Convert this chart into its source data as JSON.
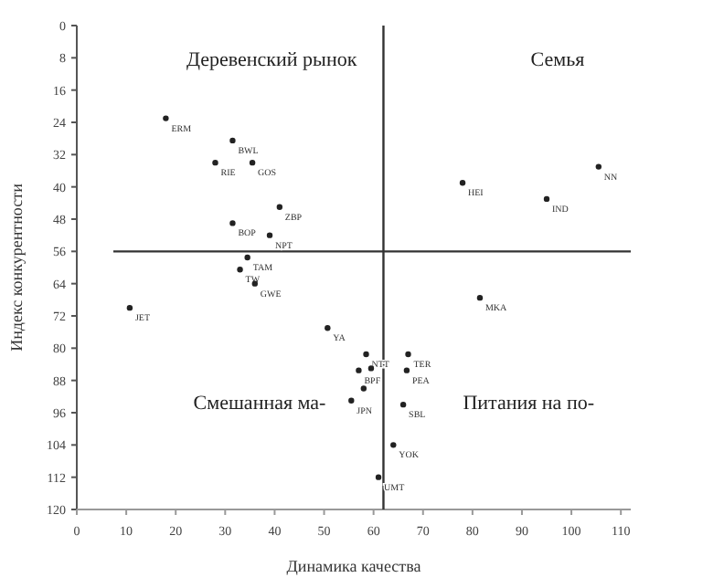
{
  "chart_data": {
    "type": "scatter",
    "xlabel": "Динамика качества",
    "ylabel": "Индекс конкурентности",
    "x": [
      18,
      31.5,
      28,
      35.5,
      41,
      31.5,
      39,
      34.5,
      33,
      36,
      10.7,
      50.7,
      78,
      105.5,
      95,
      81.5,
      58.5,
      67,
      57,
      59.5,
      66.7,
      58,
      55.5,
      66,
      64,
      61
    ],
    "series": [
      {
        "color": "#222222",
        "values": [
          23,
          28.5,
          34,
          34,
          45,
          49,
          52,
          57.5,
          60.5,
          64,
          70,
          75,
          39,
          35,
          43,
          67.5,
          81.5,
          81.5,
          85.5,
          85,
          85.5,
          90,
          93,
          94,
          104,
          112
        ]
      }
    ],
    "xlim": [
      0,
      112
    ],
    "xticks": [
      0,
      10,
      20,
      30,
      40,
      50,
      60,
      70,
      80,
      90,
      100,
      110
    ],
    "ylim": [
      120,
      0
    ],
    "yticks": [
      0,
      8,
      16,
      24,
      32,
      40,
      48,
      56,
      64,
      72,
      80,
      88,
      96,
      104,
      112,
      120
    ],
    "grid": false,
    "marker": "circle",
    "ref_lines": [
      {
        "axis": "x",
        "value": 62,
        "label": null
      },
      {
        "axis": "y",
        "value": 56,
        "label": null
      }
    ],
    "annotations": [
      "Деревенский рынок",
      "Семья",
      "Смешанная ма-",
      "Питания на по-",
      {
        "text": "ERM",
        "x": 18,
        "y": 23
      },
      {
        "text": "BWL",
        "x": 31.5,
        "y": 28.5
      },
      {
        "text": "RIE",
        "x": 28,
        "y": 34
      },
      {
        "text": "GOS",
        "x": 35.5,
        "y": 34
      },
      {
        "text": "ZBP",
        "x": 41,
        "y": 45
      },
      {
        "text": "BOP",
        "x": 31.5,
        "y": 49
      },
      {
        "text": "NPT",
        "x": 39,
        "y": 52
      },
      {
        "text": "TAM",
        "x": 34.5,
        "y": 57.5
      },
      {
        "text": "TW",
        "x": 33,
        "y": 60.5
      },
      {
        "text": "GWE",
        "x": 36,
        "y": 64
      },
      {
        "text": "JET",
        "x": 10.7,
        "y": 70
      },
      {
        "text": "YA",
        "x": 50.7,
        "y": 75
      },
      {
        "text": "HEI",
        "x": 78,
        "y": 39
      },
      {
        "text": "NN",
        "x": 105.5,
        "y": 35
      },
      {
        "text": "IND",
        "x": 95,
        "y": 43
      },
      {
        "text": "MKA",
        "x": 81.5,
        "y": 67.5
      },
      {
        "text": "NTT",
        "x": 58.5,
        "y": 81.5
      },
      {
        "text": "TER",
        "x": 67,
        "y": 81.5
      },
      {
        "text": "BPF",
        "x": 57,
        "y": 85.5
      },
      {
        "text": "PEA",
        "x": 66.7,
        "y": 85.5
      },
      {
        "text": "JPN",
        "x": 55.5,
        "y": 93
      },
      {
        "text": "SBL",
        "x": 66,
        "y": 94
      },
      {
        "text": "YOK",
        "x": 64,
        "y": 104
      },
      {
        "text": "UMT",
        "x": 61,
        "y": 112
      }
    ]
  }
}
